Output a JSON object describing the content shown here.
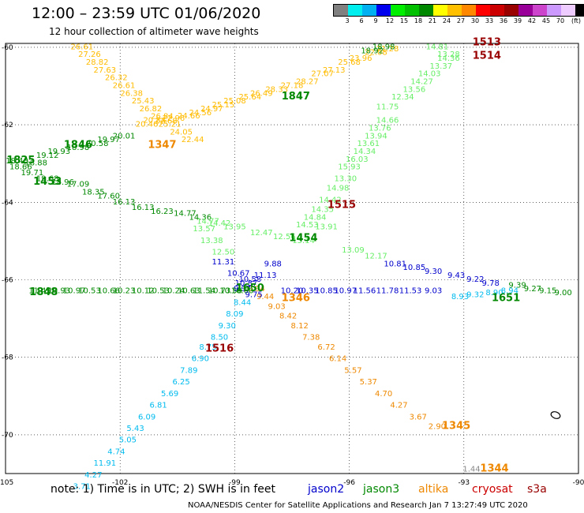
{
  "header": {
    "title": "12:00 – 23:59 UTC 01/06/2020",
    "subtitle": "12 hour collection of altimeter wave heights"
  },
  "colorbar": {
    "colors": [
      "#808080",
      "#00eeee",
      "#00b0f0",
      "#0000ee",
      "#00ee00",
      "#00c000",
      "#008800",
      "#ffff00",
      "#ffc000",
      "#ff8800",
      "#ff0000",
      "#cc0000",
      "#990000",
      "#990099",
      "#cc44cc",
      "#cc99ff",
      "#eeccff",
      "#000000"
    ],
    "labels": [
      "3",
      "6",
      "9",
      "12",
      "15",
      "18",
      "21",
      "24",
      "27",
      "30",
      "33",
      "36",
      "39",
      "42",
      "45",
      "70",
      "(ft)"
    ]
  },
  "map": {
    "lon_labels": [
      "-105",
      "-102",
      "-99",
      "-96",
      "-93",
      "-90"
    ],
    "lat_labels": [
      "-60",
      "-62",
      "-64",
      "-66",
      "-68",
      "-70"
    ]
  },
  "notes": {
    "text": "note:  1) Time is in UTC;  2) SWH is in feet",
    "sats": [
      {
        "name": "jason2",
        "color": "#0000cc"
      },
      {
        "name": "jason3",
        "color": "#008800"
      },
      {
        "name": "altika",
        "color": "#ee8800"
      },
      {
        "name": "cryosat",
        "color": "#cc0000"
      },
      {
        "name": "s3a",
        "color": "#990000"
      }
    ]
  },
  "footer": "NOAA/NESDIS Center for Satellite Applications and Research      Jan  7 13:27:49 UTC 2020",
  "tracks": [
    {
      "name": "altika-1847",
      "color": "#ffbb00",
      "points": [
        [
          "-101.3",
          "-62.05",
          "20.46"
        ],
        [
          "-101.1",
          "-61.95",
          "20.84"
        ],
        [
          "-100.8",
          "-61.97",
          "22.68"
        ],
        [
          "-100.6",
          "-61.9",
          "22.96"
        ],
        [
          "-100.2",
          "-61.83",
          "24.66"
        ],
        [
          "-99.9",
          "-61.75",
          "24.56"
        ],
        [
          "-99.6",
          "-61.65",
          "24.97"
        ],
        [
          "-99.3",
          "-61.55",
          "25.15"
        ],
        [
          "-99.0",
          "-61.45",
          "25.08"
        ],
        [
          "-98.6",
          "-61.35",
          "25.64"
        ],
        [
          "-98.3",
          "-61.25",
          "26.49"
        ],
        [
          "-97.9",
          "-61.15",
          "28.33"
        ],
        [
          "-97.5",
          "-61.05",
          "27.18"
        ],
        [
          "-97.1",
          "-60.95",
          "28.27"
        ],
        [
          "-96.7",
          "-60.75",
          "27.07"
        ],
        [
          "-96.4",
          "-60.65",
          "27.13"
        ],
        [
          "-96.0",
          "-60.45",
          "25.68"
        ],
        [
          "-95.7",
          "-60.35",
          "23.96"
        ],
        [
          "-95.3",
          "-60.2",
          "22.08"
        ],
        [
          "-95.0",
          "-60.1",
          "21.28"
        ]
      ]
    },
    {
      "name": "altika-1347",
      "color": "#ffbb00",
      "points": [
        [
          "-103.0",
          "-60.05",
          "26.61"
        ],
        [
          "-102.8",
          "-60.25",
          "27.26"
        ],
        [
          "-102.6",
          "-60.45",
          "28.82"
        ],
        [
          "-102.4",
          "-60.65",
          "27.63"
        ],
        [
          "-102.1",
          "-60.85",
          "26.32"
        ],
        [
          "-101.9",
          "-61.05",
          "26.61"
        ],
        [
          "-101.7",
          "-61.25",
          "26.38"
        ],
        [
          "-101.4",
          "-61.45",
          "25.43"
        ],
        [
          "-101.2",
          "-61.65",
          "26.82"
        ],
        [
          "-100.9",
          "-61.85",
          "26.84"
        ],
        [
          "-100.7",
          "-62.05",
          "25.21"
        ],
        [
          "-100.4",
          "-62.25",
          "24.05"
        ],
        [
          "-100.1",
          "-62.45",
          "22.44"
        ]
      ]
    },
    {
      "name": "altika-1346",
      "color": "#ee8800",
      "points": [
        [
          "-98.5",
          "-66.3",
          "10.94"
        ],
        [
          "-98.2",
          "-66.5",
          "9.44"
        ],
        [
          "-97.9",
          "-66.75",
          "9.03"
        ],
        [
          "-97.6",
          "-67.0",
          "8.42"
        ],
        [
          "-97.3",
          "-67.25",
          "8.12"
        ],
        [
          "-97.0",
          "-67.55",
          "7.38"
        ],
        [
          "-96.6",
          "-67.8",
          "6.72"
        ],
        [
          "-96.3",
          "-68.1",
          "6.14"
        ],
        [
          "-95.9",
          "-68.4",
          "5.57"
        ],
        [
          "-95.5",
          "-68.7",
          "5.37"
        ],
        [
          "-95.1",
          "-69.0",
          "4.70"
        ],
        [
          "-94.7",
          "-69.3",
          "4.27"
        ],
        [
          "-94.2",
          "-69.6",
          "3.67"
        ],
        [
          "-93.7",
          "-69.85",
          "2.90"
        ]
      ]
    },
    {
      "name": "altika-1344",
      "color": "#888888",
      "points": [
        [
          "-92.8",
          "-70.95",
          "1.44"
        ]
      ]
    },
    {
      "name": "jason3-1825",
      "color": "#008800",
      "points": [
        [
          "-104.7",
          "-63.0",
          "18.40"
        ],
        [
          "-104.2",
          "-63.05",
          "18.88"
        ],
        [
          "-103.9",
          "-62.85",
          "19.12"
        ],
        [
          "-103.6",
          "-62.75",
          "19.93"
        ],
        [
          "-103.1",
          "-62.65",
          "18.98"
        ],
        [
          "-102.6",
          "-62.55",
          "20.58"
        ],
        [
          "-102.3",
          "-62.45",
          "19.97"
        ],
        [
          "-101.9",
          "-62.35",
          "20.01"
        ],
        [
          "-104.6",
          "-63.15",
          "18.66"
        ],
        [
          "-104.3",
          "-63.3",
          "19.71"
        ],
        [
          "-103.9",
          "-63.45",
          "19.68"
        ],
        [
          "-103.5",
          "-63.55",
          "18.96"
        ],
        [
          "-103.1",
          "-63.6",
          "17.09"
        ],
        [
          "-102.7",
          "-63.8",
          "18.35"
        ],
        [
          "-102.3",
          "-63.9",
          "17.60"
        ],
        [
          "-101.9",
          "-64.05",
          "16.13"
        ],
        [
          "-101.4",
          "-64.2",
          "16.13"
        ],
        [
          "-100.9",
          "-64.3",
          "16.23"
        ],
        [
          "-100.3",
          "-64.35",
          "14.77"
        ],
        [
          "-99.9",
          "-64.45",
          "14.36"
        ]
      ]
    },
    {
      "name": "jason3-1651",
      "color": "#008800",
      "points": [
        [
          "-91.6",
          "-66.2",
          "9.39"
        ],
        [
          "-91.2",
          "-66.3",
          "9.27"
        ],
        [
          "-90.8",
          "-66.35",
          "9.15"
        ],
        [
          "-90.4",
          "-66.4",
          "9.00"
        ]
      ]
    },
    {
      "name": "jason3-1848",
      "color": "#008800",
      "points": [
        [
          "-104.1",
          "-66.35",
          "11.49"
        ],
        [
          "-103.6",
          "-66.35",
          "10.93"
        ],
        [
          "-103.2",
          "-66.35",
          "10.97"
        ],
        [
          "-102.8",
          "-66.35",
          "10.53"
        ],
        [
          "-102.3",
          "-66.35",
          "10.66"
        ],
        [
          "-101.9",
          "-66.35",
          "10.23"
        ],
        [
          "-101.4",
          "-66.35",
          "10.12"
        ],
        [
          "-101.0",
          "-66.35",
          "10.53"
        ],
        [
          "-100.6",
          "-66.35",
          "10.24"
        ],
        [
          "-100.2",
          "-66.35",
          "10.63"
        ],
        [
          "-99.8",
          "-66.35",
          "11.54"
        ],
        [
          "-99.4",
          "-66.35",
          "10.73"
        ],
        [
          "-99.1",
          "-66.35",
          "10.58"
        ],
        [
          "-98.8",
          "-66.35",
          "10.60"
        ]
      ]
    },
    {
      "name": "jason2-1515",
      "color": "#66ee66",
      "points": [
        [
          "-93.4",
          "-60.35",
          "14.36"
        ],
        [
          "-93.6",
          "-60.55",
          "13.37"
        ],
        [
          "-93.9",
          "-60.75",
          "14.03"
        ],
        [
          "-94.1",
          "-60.95",
          "14.27"
        ],
        [
          "-94.3",
          "-61.15",
          "13.56"
        ],
        [
          "-94.6",
          "-61.35",
          "12.34"
        ],
        [
          "-95.0",
          "-61.95",
          "14.66"
        ],
        [
          "-95.2",
          "-62.15",
          "13.76"
        ],
        [
          "-95.3",
          "-62.35",
          "13.94"
        ],
        [
          "-95.5",
          "-62.55",
          "13.61"
        ],
        [
          "-95.6",
          "-62.75",
          "14.34"
        ],
        [
          "-95.8",
          "-62.95",
          "16.03"
        ],
        [
          "-96.0",
          "-63.15",
          "15.93"
        ],
        [
          "-96.1",
          "-63.45",
          "13.30"
        ],
        [
          "-96.3",
          "-63.7",
          "14.98"
        ],
        [
          "-96.5",
          "-64.0",
          "14.42"
        ],
        [
          "-96.7",
          "-64.25",
          "14.35"
        ],
        [
          "-96.9",
          "-64.45",
          "14.84"
        ],
        [
          "-97.1",
          "-64.65",
          "14.53"
        ],
        [
          "-96.6",
          "-64.7",
          "13.91"
        ]
      ]
    },
    {
      "name": "jason2-1454",
      "color": "#66ee66",
      "points": [
        [
          "-99.7",
          "-64.55",
          "14.77"
        ],
        [
          "-99.4",
          "-64.6",
          "14.42"
        ],
        [
          "-99.0",
          "-64.7",
          "13.95"
        ],
        [
          "-98.3",
          "-64.85",
          "12.47"
        ],
        [
          "-97.7",
          "-64.95",
          "12.56"
        ],
        [
          "-97.2",
          "-65.05",
          "13.14"
        ],
        [
          "-95.9",
          "-65.3",
          "13.09"
        ],
        [
          "-95.3",
          "-65.45",
          "12.17"
        ],
        [
          "-99.8",
          "-64.75",
          "13.57"
        ],
        [
          "-99.6",
          "-65.05",
          "13.38"
        ],
        [
          "-99.3",
          "-65.35",
          "12.50"
        ]
      ]
    },
    {
      "name": "cryosat-1516",
      "color": "#0000cc",
      "points": [
        [
          "-98.0",
          "-65.65",
          "9.88"
        ],
        [
          "-98.2",
          "-65.95",
          "11.13"
        ],
        [
          "-98.6",
          "-66.05",
          "10.58"
        ],
        [
          "-98.9",
          "-65.9",
          "10.67"
        ],
        [
          "-99.3",
          "-65.6",
          "11.31"
        ],
        [
          "-98.7",
          "-66.15",
          "10.87"
        ],
        [
          "-98.8",
          "-66.3",
          "9.97"
        ],
        [
          "-98.5",
          "-66.45",
          "9.75"
        ],
        [
          "-94.8",
          "-65.65",
          "10.81"
        ],
        [
          "-94.3",
          "-65.75",
          "10.85"
        ],
        [
          "-93.8",
          "-65.85",
          "9.30"
        ],
        [
          "-93.2",
          "-65.95",
          "9.43"
        ],
        [
          "-92.7",
          "-66.05",
          "9.22"
        ],
        [
          "-92.3",
          "-66.15",
          "9.78"
        ]
      ]
    },
    {
      "name": "cryosat-1346",
      "color": "#0000cc",
      "points": [
        [
          "-97.5",
          "-66.35",
          "10.20"
        ],
        [
          "-97.1",
          "-66.35",
          "10.35"
        ],
        [
          "-96.6",
          "-66.35",
          "10.85"
        ],
        [
          "-96.1",
          "-66.35",
          "10.97"
        ],
        [
          "-95.6",
          "-66.35",
          "11.56"
        ],
        [
          "-95.0",
          "-66.35",
          "11.78"
        ],
        [
          "-94.4",
          "-66.35",
          "11.53"
        ],
        [
          "-93.8",
          "-66.35",
          "9.03"
        ]
      ]
    },
    {
      "name": "sentinel-1516",
      "color": "#00bbee",
      "points": [
        [
          "-98.8",
          "-66.65",
          "8.44"
        ],
        [
          "-99.0",
          "-66.95",
          "8.09"
        ],
        [
          "-99.2",
          "-67.25",
          "9.30"
        ],
        [
          "-99.4",
          "-67.55",
          "8.50"
        ],
        [
          "-99.7",
          "-67.8",
          "8.75"
        ],
        [
          "-99.9",
          "-68.1",
          "6.90"
        ],
        [
          "-100.2",
          "-68.4",
          "7.89"
        ],
        [
          "-100.4",
          "-68.7",
          "6.25"
        ],
        [
          "-100.7",
          "-69.0",
          "5.69"
        ],
        [
          "-101.0",
          "-69.3",
          "6.81"
        ],
        [
          "-101.3",
          "-69.6",
          "6.09"
        ],
        [
          "-101.6",
          "-69.9",
          "5.43"
        ],
        [
          "-101.8",
          "-70.2",
          "5.05"
        ],
        [
          "-102.1",
          "-70.5",
          "4.74"
        ],
        [
          "-102.4",
          "-70.8",
          "11.91"
        ],
        [
          "-102.7",
          "-71.1",
          "4.27"
        ],
        [
          "-103.0",
          "-71.4",
          "3.71"
        ]
      ]
    },
    {
      "name": "sentinel-1345",
      "color": "#00bbee",
      "points": [
        [
          "-93.1",
          "-66.5",
          "8.93"
        ],
        [
          "-92.7",
          "-66.45",
          "9.32"
        ],
        [
          "-92.2",
          "-66.4",
          "8.90"
        ],
        [
          "-91.8",
          "-66.35",
          "8.94"
        ]
      ]
    },
    {
      "name": "jason2-1513",
      "color": "#66ee66",
      "points": [
        [
          "-93.7",
          "-60.05",
          "14.81"
        ],
        [
          "-93.4",
          "-60.25",
          "13.28"
        ]
      ]
    },
    {
      "name": "jason3-1847-tail",
      "color": "#008800",
      "points": [
        [
          "-95.1",
          "-60.05",
          "18.98"
        ],
        [
          "-95.4",
          "-60.15",
          "18.92"
        ]
      ]
    },
    {
      "name": "jason2-1515b",
      "color": "#66ee66",
      "points": [
        [
          "-95.0",
          "-61.6",
          "11.75"
        ]
      ]
    }
  ],
  "stations": [
    {
      "lon": "-92.4",
      "lat": "-59.95",
      "label": "1513",
      "color": "#990000"
    },
    {
      "lon": "-92.4",
      "lat": "-60.3",
      "label": "1514",
      "color": "#990000"
    },
    {
      "lon": "-97.4",
      "lat": "-61.35",
      "label": "1847",
      "color": "#008800"
    },
    {
      "lon": "-100.9",
      "lat": "-62.6",
      "label": "1347",
      "color": "#ee8800"
    },
    {
      "lon": "-103.1",
      "lat": "-62.6",
      "label": "1846",
      "color": "#008800"
    },
    {
      "lon": "-104.6",
      "lat": "-63.0",
      "label": "1825",
      "color": "#008800"
    },
    {
      "lon": "-103.9",
      "lat": "-63.55",
      "label": "1453",
      "color": "#008800"
    },
    {
      "lon": "-96.2",
      "lat": "-64.15",
      "label": "1515",
      "color": "#990000"
    },
    {
      "lon": "-97.2",
      "lat": "-65.0",
      "label": "1454",
      "color": "#008800"
    },
    {
      "lon": "-91.9",
      "lat": "-66.55",
      "label": "1651",
      "color": "#008800"
    },
    {
      "lon": "-98.6",
      "lat": "-66.3",
      "label": "1650",
      "color": "#008800"
    },
    {
      "lon": "-104.0",
      "lat": "-66.4",
      "label": "1848",
      "color": "#008800"
    },
    {
      "lon": "-97.4",
      "lat": "-66.55",
      "label": "1346",
      "color": "#ee8800"
    },
    {
      "lon": "-99.4",
      "lat": "-67.85",
      "label": "1516",
      "color": "#990000"
    },
    {
      "lon": "-93.2",
      "lat": "-69.85",
      "label": "1345",
      "color": "#ee8800"
    },
    {
      "lon": "-92.2",
      "lat": "-70.95",
      "label": "1344",
      "color": "#ee8800"
    }
  ]
}
